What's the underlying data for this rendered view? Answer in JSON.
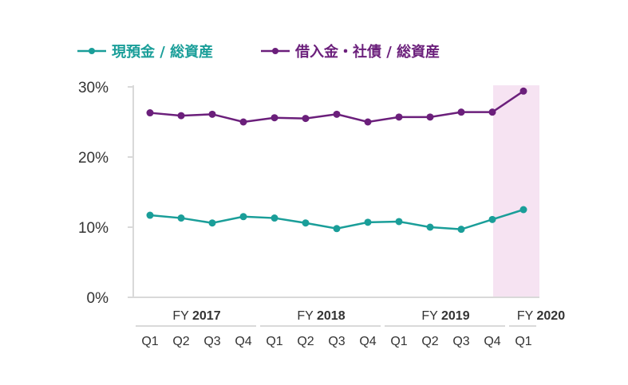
{
  "chart_data": {
    "type": "line",
    "title": "",
    "xlabel": "",
    "ylabel": "",
    "ylim": [
      0,
      30
    ],
    "yticks": [
      {
        "value": 0,
        "label": "0%"
      },
      {
        "value": 10,
        "label": "10%"
      },
      {
        "value": 20,
        "label": "20%"
      },
      {
        "value": 30,
        "label": "30%"
      }
    ],
    "categories": [
      "Q1",
      "Q2",
      "Q3",
      "Q4",
      "Q1",
      "Q2",
      "Q3",
      "Q4",
      "Q1",
      "Q2",
      "Q3",
      "Q4",
      "Q1"
    ],
    "year_groups": [
      {
        "prefix": "FY",
        "year": "2017",
        "start": 0,
        "end": 3
      },
      {
        "prefix": "FY",
        "year": "2018",
        "start": 4,
        "end": 7
      },
      {
        "prefix": "FY",
        "year": "2019",
        "start": 8,
        "end": 11
      },
      {
        "prefix": "FY",
        "year": "2020",
        "start": 12,
        "end": 12
      }
    ],
    "highlight_index": 12,
    "highlight_color": "#f6e3f2",
    "legend_position": "top-left",
    "series": [
      {
        "name": "現預金 / 総資産",
        "color": "#1a9e99",
        "values": [
          11.7,
          11.3,
          10.6,
          11.5,
          11.3,
          10.6,
          9.8,
          10.7,
          10.8,
          10.0,
          9.7,
          11.1,
          12.5
        ]
      },
      {
        "name": "借入金・社債 / 総資産",
        "color": "#6b1f7b",
        "values": [
          26.3,
          25.9,
          26.1,
          25.0,
          25.6,
          25.5,
          26.1,
          25.0,
          25.7,
          25.7,
          26.4,
          26.4,
          29.4
        ]
      }
    ]
  }
}
